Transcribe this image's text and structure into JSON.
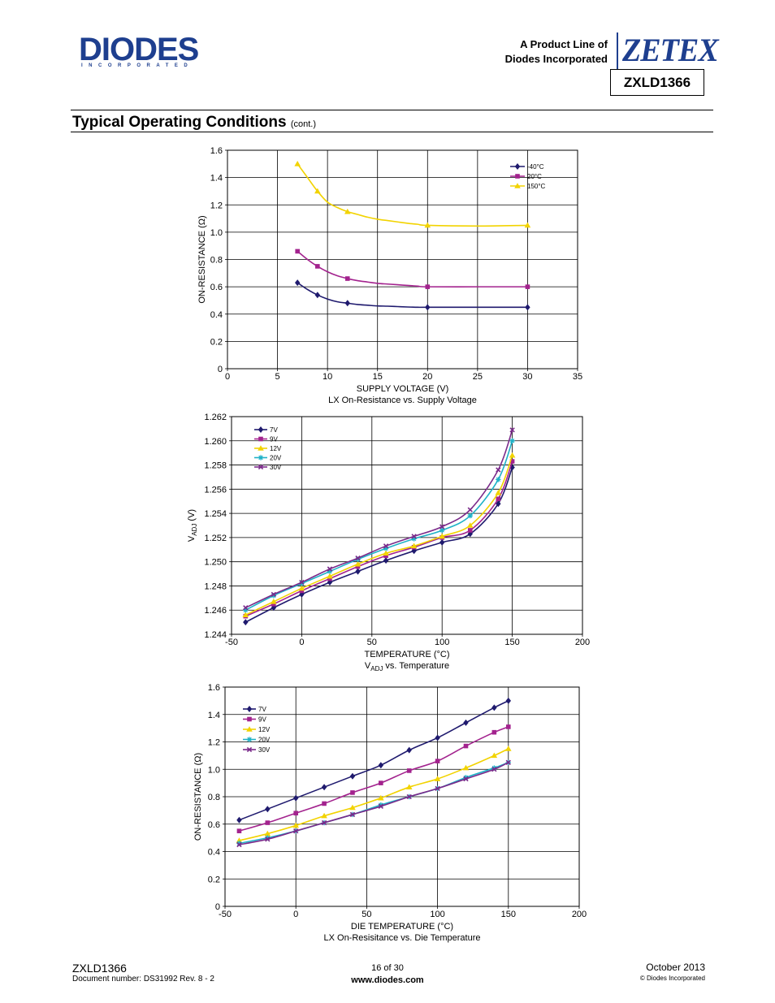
{
  "header": {
    "logo_text": "DIODES",
    "logo_sub": "INCORPORATED",
    "product_line_1": "A Product Line of",
    "product_line_2": "Diodes Incorporated",
    "brand": "ZETEX",
    "part_number": "ZXLD1366"
  },
  "section": {
    "title": "Typical Operating Conditions",
    "cont": "(cont.)"
  },
  "footer": {
    "part": "ZXLD1366",
    "doc_number": "Document number: DS31992 Rev. 8 - 2",
    "page": "16 of 30",
    "website": "www.diodes.com",
    "date": "October 2013",
    "copyright": "© Diodes Incorporated"
  },
  "colors": {
    "brand_blue": "#1e3f8f",
    "navy": "#1f1a6e",
    "magenta": "#a3238e",
    "yellow": "#f2d300",
    "cyan": "#20b2c7",
    "purple": "#7a2a8a"
  },
  "chart_data": [
    {
      "type": "line",
      "title": "LX On-Resistance vs. Supply Voltage",
      "xlabel": "SUPPLY VOLTAGE (V)",
      "ylabel": "ON-RESISTANCE (Ω)",
      "xlim": [
        0,
        35
      ],
      "ylim": [
        0,
        1.6
      ],
      "xticks": [
        0,
        5,
        10,
        15,
        20,
        25,
        30,
        35
      ],
      "yticks": [
        0,
        0.2,
        0.4,
        0.6,
        0.8,
        1.0,
        1.2,
        1.4,
        1.6
      ],
      "ytick_labels": [
        "0",
        "0.2",
        "0.4",
        "0.6",
        "0.8",
        "1.0",
        "1.2",
        "1.4",
        "1.6"
      ],
      "grid": true,
      "legend_position": "top-right",
      "series": [
        {
          "name": "-40°C",
          "color": "#1f1a6e",
          "marker": "diamond",
          "x": [
            7,
            9,
            12,
            20,
            30
          ],
          "y": [
            0.63,
            0.54,
            0.48,
            0.45,
            0.45
          ],
          "curve_x": [
            7,
            8,
            9,
            10,
            11,
            12,
            13,
            14,
            15,
            16,
            17,
            18,
            19,
            20,
            25,
            30
          ],
          "curve_y": [
            0.63,
            0.58,
            0.54,
            0.51,
            0.49,
            0.48,
            0.47,
            0.465,
            0.46,
            0.458,
            0.455,
            0.452,
            0.45,
            0.45,
            0.45,
            0.45
          ]
        },
        {
          "name": "20°C",
          "color": "#a3238e",
          "marker": "square",
          "x": [
            7,
            9,
            12,
            20,
            30
          ],
          "y": [
            0.86,
            0.75,
            0.66,
            0.6,
            0.6
          ],
          "curve_x": [
            7,
            8,
            9,
            10,
            11,
            12,
            13,
            14,
            15,
            16,
            17,
            18,
            19,
            20,
            25,
            30
          ],
          "curve_y": [
            0.86,
            0.8,
            0.75,
            0.71,
            0.68,
            0.66,
            0.645,
            0.635,
            0.625,
            0.62,
            0.615,
            0.61,
            0.605,
            0.6,
            0.6,
            0.6
          ]
        },
        {
          "name": "150°C",
          "color": "#f2d300",
          "marker": "triangle",
          "x": [
            7,
            9,
            12,
            20,
            30
          ],
          "y": [
            1.5,
            1.3,
            1.15,
            1.05,
            1.05
          ],
          "curve_x": [
            7,
            8,
            9,
            10,
            11,
            12,
            13,
            14,
            15,
            16,
            17,
            18,
            19,
            20,
            25,
            30
          ],
          "curve_y": [
            1.5,
            1.4,
            1.3,
            1.22,
            1.18,
            1.15,
            1.13,
            1.11,
            1.095,
            1.085,
            1.075,
            1.065,
            1.058,
            1.05,
            1.045,
            1.05
          ]
        }
      ]
    },
    {
      "type": "line",
      "title": "V_ADJ vs. Temperature",
      "title_main": "V",
      "title_sub": "ADJ",
      "title_rest": " vs. Temperature",
      "xlabel": "TEMPERATURE (°C)",
      "ylabel": "V_ADJ (V)",
      "ylabel_main": "V",
      "ylabel_sub": "ADJ",
      "ylabel_rest": " (V)",
      "xlim": [
        -50,
        200
      ],
      "ylim": [
        1.244,
        1.262
      ],
      "xticks": [
        -50,
        0,
        50,
        100,
        150,
        200
      ],
      "yticks": [
        1.244,
        1.246,
        1.248,
        1.25,
        1.252,
        1.254,
        1.256,
        1.258,
        1.26,
        1.262
      ],
      "ytick_labels": [
        "1.244",
        "1.246",
        "1.248",
        "1.250",
        "1.252",
        "1.254",
        "1.256",
        "1.258",
        "1.260",
        "1.262"
      ],
      "grid": true,
      "legend_position": "top-left",
      "series": [
        {
          "name": "7V",
          "color": "#1f1a6e",
          "marker": "diamond",
          "x": [
            -40,
            -20,
            0,
            20,
            40,
            60,
            80,
            100,
            120,
            140,
            150
          ],
          "y": [
            1.245,
            1.2462,
            1.2473,
            1.2483,
            1.2492,
            1.2501,
            1.2509,
            1.2516,
            1.2523,
            1.2548,
            1.2578
          ]
        },
        {
          "name": "9V",
          "color": "#a3238e",
          "marker": "square",
          "x": [
            -40,
            -20,
            0,
            20,
            40,
            60,
            80,
            100,
            120,
            140,
            150
          ],
          "y": [
            1.2455,
            1.2465,
            1.2476,
            1.2486,
            1.2496,
            1.2505,
            1.2512,
            1.252,
            1.2526,
            1.2552,
            1.2583
          ]
        },
        {
          "name": "12V",
          "color": "#f2d300",
          "marker": "triangle",
          "x": [
            -40,
            -20,
            0,
            20,
            40,
            60,
            80,
            100,
            120,
            140,
            150
          ],
          "y": [
            1.2456,
            1.2467,
            1.2478,
            1.2488,
            1.2498,
            1.2507,
            1.2513,
            1.2521,
            1.253,
            1.2557,
            1.2588
          ]
        },
        {
          "name": "20V",
          "color": "#20b2c7",
          "marker": "star",
          "x": [
            -40,
            -20,
            0,
            20,
            40,
            60,
            80,
            100,
            120,
            140,
            150
          ],
          "y": [
            1.246,
            1.2472,
            1.2482,
            1.2492,
            1.2502,
            1.2511,
            1.2519,
            1.2526,
            1.2538,
            1.2568,
            1.26
          ]
        },
        {
          "name": "30V",
          "color": "#7a2a8a",
          "marker": "x",
          "x": [
            -40,
            -20,
            0,
            20,
            40,
            60,
            80,
            100,
            120,
            140,
            150
          ],
          "y": [
            1.2462,
            1.2473,
            1.2483,
            1.2494,
            1.2503,
            1.2513,
            1.2521,
            1.2529,
            1.2543,
            1.2576,
            1.2609
          ]
        }
      ]
    },
    {
      "type": "line",
      "title": "LX On-Resisitance vs. Die Temperature",
      "xlabel": "DIE TEMPERATURE (°C)",
      "ylabel": "ON-RESISTANCE (Ω)",
      "xlim": [
        -50,
        200
      ],
      "ylim": [
        0,
        1.6
      ],
      "xticks": [
        -50,
        0,
        50,
        100,
        150,
        200
      ],
      "yticks": [
        0,
        0.2,
        0.4,
        0.6,
        0.8,
        1.0,
        1.2,
        1.4,
        1.6
      ],
      "ytick_labels": [
        "0",
        "0.2",
        "0.4",
        "0.6",
        "0.8",
        "1.0",
        "1.2",
        "1.4",
        "1.6"
      ],
      "grid": true,
      "legend_position": "top-left",
      "series": [
        {
          "name": "7V",
          "color": "#1f1a6e",
          "marker": "diamond",
          "x": [
            -40,
            -20,
            0,
            20,
            40,
            60,
            80,
            100,
            120,
            140,
            150
          ],
          "y": [
            0.63,
            0.71,
            0.79,
            0.87,
            0.95,
            1.03,
            1.14,
            1.23,
            1.34,
            1.45,
            1.5
          ]
        },
        {
          "name": "9V",
          "color": "#a3238e",
          "marker": "square",
          "x": [
            -40,
            -20,
            0,
            20,
            40,
            60,
            80,
            100,
            120,
            140,
            150
          ],
          "y": [
            0.55,
            0.61,
            0.68,
            0.75,
            0.83,
            0.9,
            0.99,
            1.06,
            1.17,
            1.27,
            1.31
          ]
        },
        {
          "name": "12V",
          "color": "#f2d300",
          "marker": "triangle",
          "x": [
            -40,
            -20,
            0,
            20,
            40,
            60,
            80,
            100,
            120,
            140,
            150
          ],
          "y": [
            0.48,
            0.53,
            0.59,
            0.66,
            0.72,
            0.79,
            0.87,
            0.93,
            1.01,
            1.1,
            1.15
          ]
        },
        {
          "name": "20V",
          "color": "#20b2c7",
          "marker": "star",
          "x": [
            -40,
            -20,
            0,
            20,
            40,
            60,
            80,
            100,
            120,
            140,
            150
          ],
          "y": [
            0.46,
            0.5,
            0.55,
            0.61,
            0.67,
            0.74,
            0.8,
            0.86,
            0.94,
            1.01,
            1.05
          ]
        },
        {
          "name": "30V",
          "color": "#7a2a8a",
          "marker": "x",
          "x": [
            -40,
            -20,
            0,
            20,
            40,
            60,
            80,
            100,
            120,
            140,
            150
          ],
          "y": [
            0.45,
            0.49,
            0.55,
            0.61,
            0.67,
            0.73,
            0.8,
            0.86,
            0.93,
            1.0,
            1.05
          ]
        }
      ]
    }
  ]
}
